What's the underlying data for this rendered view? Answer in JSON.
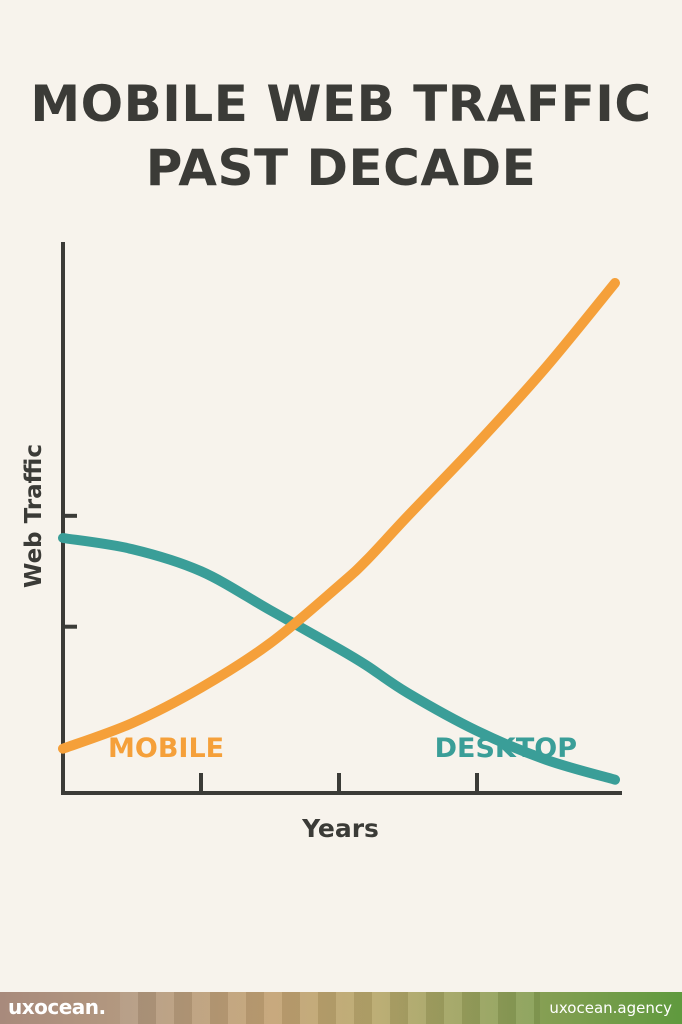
{
  "chart_data": {
    "type": "line",
    "title": [
      "MOBILE WEB TRAFFIC",
      "PAST DECADE"
    ],
    "xlabel": "Years",
    "ylabel": "Web Traffic",
    "xlim": [
      0,
      4
    ],
    "ylim": [
      0,
      4.6
    ],
    "grid": false,
    "x_ticks": [
      1,
      2,
      3
    ],
    "y_ticks": [
      1.5,
      2.5
    ],
    "series": [
      {
        "name": "MOBILE",
        "color": "#f5a03a",
        "x": [
          0,
          0.5,
          1,
          1.5,
          2,
          2.2,
          2.5,
          3,
          3.5,
          4
        ],
        "y": [
          0.4,
          0.63,
          0.95,
          1.35,
          1.87,
          2.1,
          2.5,
          3.15,
          3.84,
          4.6
        ]
      },
      {
        "name": "DESKTOP",
        "color": "#3a9e98",
        "x": [
          0,
          0.5,
          1,
          1.5,
          2,
          2.2,
          2.5,
          3,
          3.5,
          4
        ],
        "y": [
          2.3,
          2.2,
          2.0,
          1.65,
          1.3,
          1.15,
          0.9,
          0.56,
          0.3,
          0.12
        ]
      }
    ]
  },
  "footer": {
    "brand": "uxocean.",
    "site": "uxocean.agency"
  }
}
